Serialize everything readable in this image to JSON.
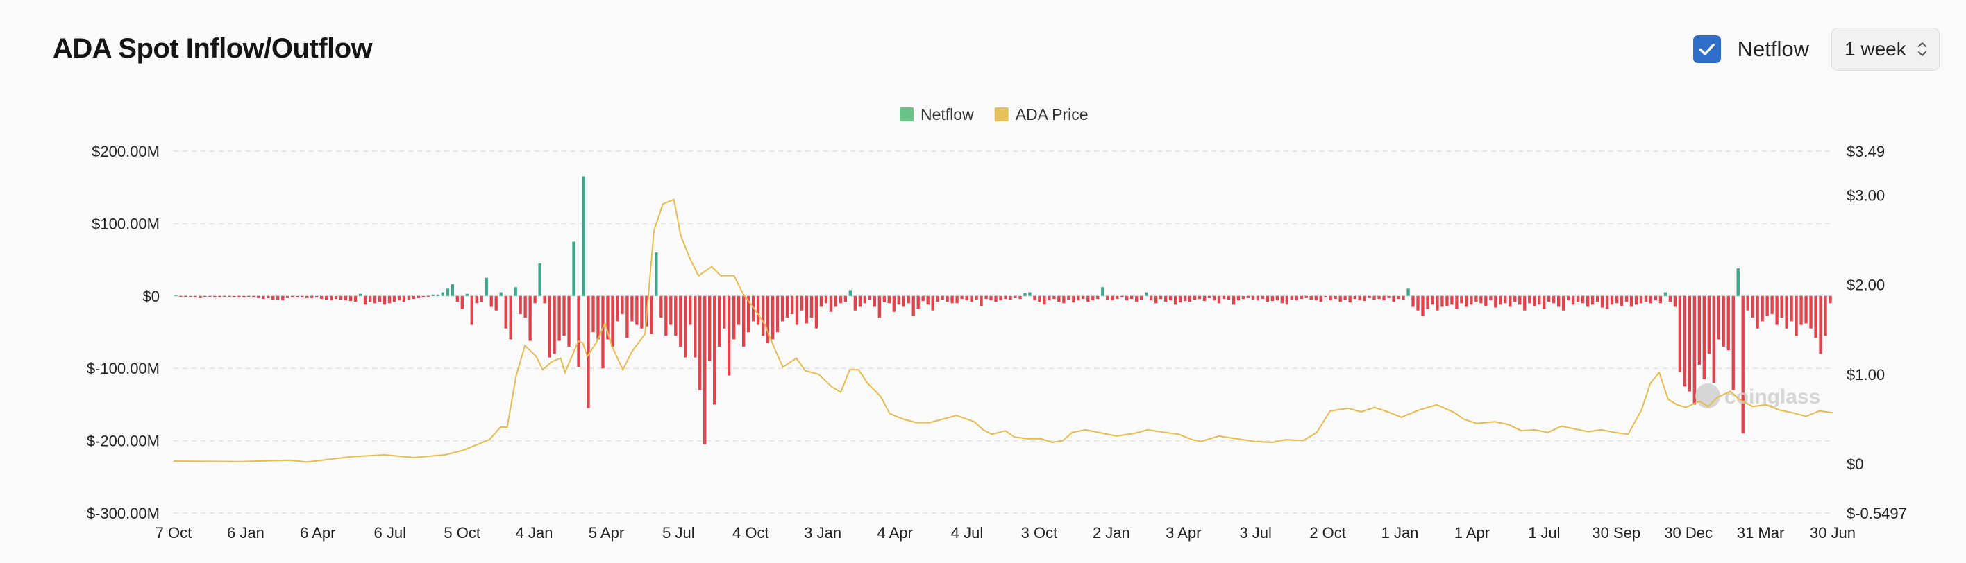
{
  "page_title": "ADA Spot Inflow/Outflow",
  "controls": {
    "netflow_toggle_label": "Netflow",
    "netflow_checked": true,
    "interval_selected": "1 week"
  },
  "watermark": "coinglass",
  "colors": {
    "inflow": "#3da589",
    "outflow": "#e0434b",
    "price_line": "#e8bb4f",
    "legend_netflow": "#6cc38a",
    "legend_price": "#e6c058",
    "checkbox": "#2f6ec9"
  },
  "chart_data": {
    "type": "bar",
    "legend": [
      {
        "name": "Netflow",
        "color_key": "legend_netflow"
      },
      {
        "name": "ADA Price",
        "color_key": "legend_price"
      }
    ],
    "legend_position": "top-center",
    "grid": true,
    "x_labels": [
      "7 Oct",
      "6 Jan",
      "6 Apr",
      "6 Jul",
      "5 Oct",
      "4 Jan",
      "5 Apr",
      "5 Jul",
      "4 Oct",
      "3 Jan",
      "4 Apr",
      "4 Jul",
      "3 Oct",
      "2 Jan",
      "3 Apr",
      "3 Jul",
      "2 Oct",
      "1 Jan",
      "1 Apr",
      "1 Jul",
      "30 Sep",
      "30 Dec",
      "31 Mar",
      "30 Jun"
    ],
    "y_left": {
      "ticks": [
        200,
        100,
        0,
        -100,
        -200,
        -300
      ],
      "tick_labels": [
        "$200.00M",
        "$100.00M",
        "$0",
        "$-100.00M",
        "$-200.00M",
        "$-300.00M"
      ],
      "range": [
        -300,
        200
      ]
    },
    "y_right": {
      "ticks": [
        3.49,
        3.0,
        2.0,
        1.0,
        0,
        -0.5497
      ],
      "tick_labels": [
        "$3.49",
        "$3.00",
        "$2.00",
        "$1.00",
        "$0",
        "$-0.5497"
      ],
      "range": [
        -0.5497,
        3.49
      ]
    },
    "series": [
      {
        "name": "Netflow",
        "unit": "USD M",
        "values": [
          0,
          -1,
          -1,
          -1,
          -2,
          -3,
          -1,
          -1,
          -2,
          -2,
          -1,
          -1,
          -1,
          -2,
          -2,
          -1,
          -2,
          -3,
          -4,
          -3,
          -5,
          -5,
          -6,
          -3,
          -2,
          -2,
          -2,
          -3,
          -3,
          -2,
          -4,
          -5,
          -6,
          -4,
          -5,
          -6,
          -7,
          -8,
          3,
          -12,
          -8,
          -10,
          -8,
          -12,
          -10,
          -8,
          -6,
          -8,
          -5,
          -4,
          -3,
          -2,
          -1,
          2,
          2,
          5,
          10,
          16,
          -8,
          -18,
          3,
          -40,
          -10,
          -8,
          25,
          -15,
          -20,
          5,
          -45,
          -60,
          12,
          -25,
          -30,
          -62,
          -10,
          45,
          -10,
          -85,
          -80,
          -62,
          -55,
          -70,
          75,
          -98,
          165,
          -155,
          -50,
          -60,
          -100,
          -60,
          -70,
          -35,
          -25,
          -58,
          -35,
          -40,
          -45,
          -42,
          -52,
          60,
          -30,
          -55,
          -40,
          -55,
          -70,
          -85,
          -40,
          -85,
          -130,
          -205,
          -90,
          -150,
          -70,
          -45,
          -110,
          -60,
          -40,
          -70,
          -50,
          -35,
          -40,
          -55,
          -65,
          -60,
          -50,
          -35,
          -30,
          -25,
          -40,
          -20,
          -38,
          -30,
          -45,
          -15,
          -10,
          -22,
          -15,
          -10,
          -8,
          8,
          -20,
          -15,
          -10,
          -5,
          -15,
          -30,
          -8,
          -10,
          -22,
          -12,
          -15,
          -10,
          -28,
          -18,
          -7,
          -12,
          -20,
          -8,
          -5,
          -8,
          -10,
          -10,
          -4,
          -6,
          -8,
          -5,
          -14,
          -4,
          -6,
          -8,
          -6,
          -4,
          -5,
          -3,
          -4,
          4,
          5,
          -6,
          -8,
          -12,
          -6,
          -4,
          -8,
          -10,
          -5,
          -9,
          -6,
          -4,
          -8,
          -6,
          -4,
          12,
          -5,
          -6,
          -4,
          -2,
          -6,
          -4,
          -8,
          -5,
          5,
          -6,
          -10,
          -4,
          -8,
          -6,
          -12,
          -9,
          -7,
          -8,
          -5,
          -4,
          -7,
          -3,
          -6,
          -10,
          -4,
          -5,
          -12,
          -6,
          -4,
          -3,
          -5,
          -6,
          -4,
          -8,
          -7,
          -6,
          -10,
          -12,
          -5,
          -6,
          -4,
          -3,
          -5,
          -6,
          -8,
          -2,
          -6,
          -4,
          -8,
          -5,
          -9,
          -4,
          -6,
          -7,
          -3,
          -5,
          -4,
          -6,
          -3,
          -8,
          -4,
          -5,
          10,
          -15,
          -20,
          -28,
          -18,
          -12,
          -20,
          -15,
          -14,
          -12,
          -18,
          -10,
          -15,
          -12,
          -8,
          -10,
          -14,
          -6,
          -16,
          -12,
          -10,
          -15,
          -8,
          -12,
          -20,
          -10,
          -14,
          -12,
          -18,
          -8,
          -10,
          -15,
          -20,
          -6,
          -12,
          -8,
          -10,
          -15,
          -12,
          -8,
          -16,
          -18,
          -12,
          -10,
          -14,
          -8,
          -15,
          -12,
          -10,
          -8,
          -10,
          -6,
          -10,
          5,
          -8,
          -15,
          -105,
          -125,
          -132,
          -150,
          -95,
          -115,
          -80,
          -120,
          -60,
          -70,
          -75,
          -130,
          38,
          -190,
          -20,
          -30,
          -45,
          -35,
          -28,
          -25,
          -40,
          -30,
          -45,
          -35,
          -55,
          -40,
          -38,
          -45,
          -58,
          -80,
          -55,
          -10
        ],
        "color_key": "inflow"
      },
      {
        "name": "ADA Price",
        "unit": "USD",
        "points": [
          [
            0,
            0.03
          ],
          [
            30,
            0.025
          ],
          [
            52,
            0.04
          ],
          [
            60,
            0.02
          ],
          [
            80,
            0.08
          ],
          [
            95,
            0.1
          ],
          [
            108,
            0.07
          ],
          [
            122,
            0.1
          ],
          [
            130,
            0.15
          ],
          [
            142,
            0.27
          ],
          [
            147,
            0.41
          ],
          [
            150,
            0.41
          ],
          [
            154,
            0.98
          ],
          [
            158,
            1.32
          ],
          [
            163,
            1.2
          ],
          [
            166,
            1.05
          ],
          [
            170,
            1.14
          ],
          [
            174,
            1.18
          ],
          [
            176,
            1.02
          ],
          [
            182,
            1.37
          ],
          [
            184,
            1.35
          ],
          [
            186,
            1.2
          ],
          [
            190,
            1.35
          ],
          [
            194,
            1.57
          ],
          [
            197,
            1.32
          ],
          [
            202,
            1.05
          ],
          [
            206,
            1.25
          ],
          [
            212,
            1.45
          ],
          [
            216,
            2.6
          ],
          [
            220,
            2.9
          ],
          [
            225,
            2.95
          ],
          [
            228,
            2.55
          ],
          [
            232,
            2.3
          ],
          [
            236,
            2.1
          ],
          [
            242,
            2.2
          ],
          [
            246,
            2.1
          ],
          [
            252,
            2.1
          ],
          [
            256,
            1.9
          ],
          [
            262,
            1.7
          ],
          [
            266,
            1.55
          ],
          [
            270,
            1.3
          ],
          [
            274,
            1.08
          ],
          [
            280,
            1.18
          ],
          [
            284,
            1.04
          ],
          [
            290,
            1.0
          ],
          [
            296,
            0.86
          ],
          [
            300,
            0.8
          ],
          [
            304,
            1.05
          ],
          [
            308,
            1.05
          ],
          [
            312,
            0.9
          ],
          [
            318,
            0.75
          ],
          [
            322,
            0.56
          ],
          [
            328,
            0.5
          ],
          [
            334,
            0.46
          ],
          [
            340,
            0.46
          ],
          [
            346,
            0.5
          ],
          [
            352,
            0.54
          ],
          [
            360,
            0.47
          ],
          [
            364,
            0.38
          ],
          [
            368,
            0.33
          ],
          [
            374,
            0.37
          ],
          [
            378,
            0.3
          ],
          [
            384,
            0.28
          ],
          [
            390,
            0.28
          ],
          [
            395,
            0.24
          ],
          [
            400,
            0.26
          ],
          [
            404,
            0.35
          ],
          [
            410,
            0.38
          ],
          [
            418,
            0.34
          ],
          [
            424,
            0.31
          ],
          [
            432,
            0.34
          ],
          [
            438,
            0.38
          ],
          [
            446,
            0.35
          ],
          [
            452,
            0.33
          ],
          [
            458,
            0.27
          ],
          [
            462,
            0.25
          ],
          [
            470,
            0.31
          ],
          [
            478,
            0.28
          ],
          [
            486,
            0.25
          ],
          [
            494,
            0.24
          ],
          [
            500,
            0.27
          ],
          [
            508,
            0.26
          ],
          [
            514,
            0.35
          ],
          [
            520,
            0.59
          ],
          [
            528,
            0.62
          ],
          [
            534,
            0.58
          ],
          [
            540,
            0.63
          ],
          [
            546,
            0.58
          ],
          [
            552,
            0.52
          ],
          [
            560,
            0.6
          ],
          [
            568,
            0.66
          ],
          [
            576,
            0.57
          ],
          [
            580,
            0.5
          ],
          [
            586,
            0.45
          ],
          [
            594,
            0.47
          ],
          [
            600,
            0.44
          ],
          [
            606,
            0.37
          ],
          [
            612,
            0.38
          ],
          [
            618,
            0.35
          ],
          [
            624,
            0.42
          ],
          [
            630,
            0.39
          ],
          [
            636,
            0.36
          ],
          [
            642,
            0.38
          ],
          [
            648,
            0.35
          ],
          [
            654,
            0.33
          ],
          [
            660,
            0.6
          ],
          [
            664,
            0.9
          ],
          [
            668,
            1.02
          ],
          [
            672,
            0.72
          ],
          [
            676,
            0.66
          ],
          [
            680,
            0.63
          ],
          [
            686,
            0.7
          ],
          [
            690,
            0.64
          ],
          [
            694,
            0.74
          ],
          [
            700,
            0.81
          ],
          [
            704,
            0.72
          ],
          [
            710,
            0.64
          ],
          [
            716,
            0.66
          ],
          [
            722,
            0.6
          ],
          [
            728,
            0.57
          ],
          [
            734,
            0.53
          ],
          [
            740,
            0.59
          ],
          [
            746,
            0.57
          ]
        ]
      }
    ]
  }
}
